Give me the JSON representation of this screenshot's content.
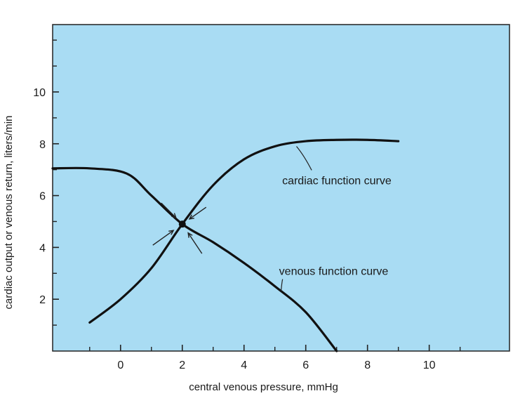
{
  "chart_data": {
    "type": "line",
    "title": "",
    "xlabel": "central venous pressure, mmHg",
    "ylabel": "cardiac output or venous return, liters/min",
    "xlim": [
      -2.2,
      12.6
    ],
    "ylim": [
      0,
      12.6
    ],
    "x_ticks": [
      0,
      2,
      4,
      6,
      8,
      10
    ],
    "x_minor_ticks": [
      -1,
      1,
      3,
      5,
      7,
      9,
      11
    ],
    "y_ticks": [
      2,
      4,
      6,
      8,
      10
    ],
    "y_minor_ticks": [
      1,
      3,
      5,
      7,
      9,
      11,
      12
    ],
    "grid": false,
    "background_color": "#a9dcf3",
    "line_color": "#111111",
    "series": [
      {
        "name": "cardiac function curve",
        "points": [
          [
            -1.0,
            1.1
          ],
          [
            0.0,
            2.0
          ],
          [
            1.0,
            3.2
          ],
          [
            2.0,
            4.9
          ],
          [
            3.0,
            6.4
          ],
          [
            4.0,
            7.4
          ],
          [
            5.0,
            7.9
          ],
          [
            6.0,
            8.1
          ],
          [
            7.0,
            8.15
          ],
          [
            8.0,
            8.15
          ],
          [
            9.0,
            8.1
          ]
        ]
      },
      {
        "name": "venous function curve",
        "points": [
          [
            -2.2,
            7.05
          ],
          [
            -1.0,
            7.05
          ],
          [
            0.2,
            6.85
          ],
          [
            1.0,
            6.0
          ],
          [
            2.0,
            4.9
          ],
          [
            3.0,
            4.2
          ],
          [
            4.0,
            3.4
          ],
          [
            5.0,
            2.5
          ],
          [
            6.0,
            1.5
          ],
          [
            7.0,
            0.0
          ]
        ]
      }
    ],
    "equilibrium_point": [
      2.0,
      4.9
    ],
    "annotations": [
      {
        "text": "cardiac function curve",
        "x": 6.6,
        "y": 6.6,
        "pointer_to": [
          5.7,
          7.9
        ]
      },
      {
        "text": "venous function curve",
        "x": 6.5,
        "y": 3.1,
        "pointer_to": [
          5.2,
          2.3
        ]
      }
    ]
  }
}
